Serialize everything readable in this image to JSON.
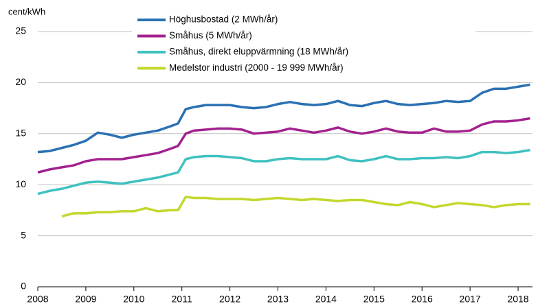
{
  "chart_data": {
    "type": "line",
    "y_label": "cent/kWh",
    "x": [
      2008,
      2008.25,
      2008.5,
      2008.75,
      2009,
      2009.25,
      2009.5,
      2009.75,
      2010,
      2010.25,
      2010.5,
      2010.75,
      2010.92,
      2011.08,
      2011.25,
      2011.5,
      2011.75,
      2012,
      2012.25,
      2012.5,
      2012.75,
      2013,
      2013.25,
      2013.5,
      2013.75,
      2014,
      2014.25,
      2014.5,
      2014.75,
      2015,
      2015.25,
      2015.5,
      2015.75,
      2016,
      2016.25,
      2016.5,
      2016.75,
      2017,
      2017.25,
      2017.5,
      2017.75,
      2018,
      2018.25
    ],
    "series": [
      {
        "name": "Höghusbostad (2 MWh/år)",
        "color": "#2a70b3",
        "values": [
          13.2,
          13.3,
          13.6,
          13.9,
          14.3,
          15.1,
          14.9,
          14.6,
          14.9,
          15.1,
          15.3,
          15.7,
          16.0,
          17.4,
          17.6,
          17.8,
          17.8,
          17.8,
          17.6,
          17.5,
          17.6,
          17.9,
          18.1,
          17.9,
          17.8,
          17.9,
          18.2,
          17.8,
          17.7,
          18.0,
          18.2,
          17.9,
          17.8,
          17.9,
          18.0,
          18.2,
          18.1,
          18.2,
          19.0,
          19.4,
          19.4,
          19.6,
          19.8
        ]
      },
      {
        "name": "Småhus (5 MWh/år)",
        "color": "#a3218e",
        "values": [
          11.2,
          11.5,
          11.7,
          11.9,
          12.3,
          12.5,
          12.5,
          12.5,
          12.7,
          12.9,
          13.1,
          13.5,
          13.8,
          15.0,
          15.3,
          15.4,
          15.5,
          15.5,
          15.4,
          15.0,
          15.1,
          15.2,
          15.5,
          15.3,
          15.1,
          15.3,
          15.6,
          15.2,
          15.0,
          15.2,
          15.5,
          15.2,
          15.1,
          15.1,
          15.5,
          15.2,
          15.2,
          15.3,
          15.9,
          16.2,
          16.2,
          16.3,
          16.5
        ]
      },
      {
        "name": "Småhus, direkt eluppvärmning (18 MWh/år)",
        "color": "#3fc1c0",
        "values": [
          9.1,
          9.4,
          9.6,
          9.9,
          10.2,
          10.3,
          10.2,
          10.1,
          10.3,
          10.5,
          10.7,
          11.0,
          11.2,
          12.5,
          12.7,
          12.8,
          12.8,
          12.7,
          12.6,
          12.3,
          12.3,
          12.5,
          12.6,
          12.5,
          12.5,
          12.5,
          12.8,
          12.4,
          12.3,
          12.5,
          12.8,
          12.5,
          12.5,
          12.6,
          12.6,
          12.7,
          12.6,
          12.8,
          13.2,
          13.2,
          13.1,
          13.2,
          13.4
        ]
      },
      {
        "name": "Medelstor industri (2000 - 19 999 MWh/år)",
        "color": "#c3d82e",
        "values": [
          null,
          null,
          6.9,
          7.2,
          7.2,
          7.3,
          7.3,
          7.4,
          7.4,
          7.7,
          7.4,
          7.5,
          7.5,
          8.8,
          8.7,
          8.7,
          8.6,
          8.6,
          8.6,
          8.5,
          8.6,
          8.7,
          8.6,
          8.5,
          8.6,
          8.5,
          8.4,
          8.5,
          8.5,
          8.3,
          8.1,
          8.0,
          8.3,
          8.1,
          7.8,
          8.0,
          8.2,
          8.1,
          8.0,
          7.8,
          8.0,
          8.1,
          8.1
        ]
      }
    ],
    "xlim": [
      2008,
      2018.3
    ],
    "xticks": [
      2008,
      2009,
      2010,
      2011,
      2012,
      2013,
      2014,
      2015,
      2016,
      2017,
      2018
    ],
    "ylim": [
      0,
      25
    ],
    "yticks": [
      0,
      5,
      10,
      15,
      20,
      25
    ],
    "grid": true,
    "legend": "top"
  }
}
